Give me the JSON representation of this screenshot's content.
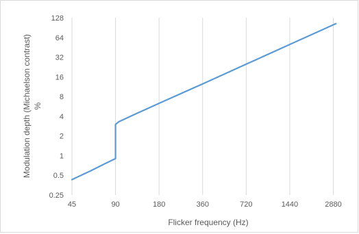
{
  "chart_data": {
    "type": "line",
    "title": "",
    "xlabel": "Flicker frequency (Hz)",
    "ylabel": "Modulation depth (Michaelson contrast)",
    "ylabel_unit": "%",
    "x_scale": "log2",
    "y_scale": "log2",
    "xlim": [
      45,
      3600
    ],
    "ylim": [
      0.25,
      128
    ],
    "x_ticks": [
      "45",
      "90",
      "180",
      "360",
      "720",
      "1440",
      "2880"
    ],
    "x_tick_values": [
      45,
      90,
      180,
      360,
      720,
      1440,
      2880
    ],
    "y_ticks": [
      "0.25",
      "0.5",
      "1",
      "2",
      "4",
      "8",
      "16",
      "32",
      "64",
      "128"
    ],
    "y_tick_values": [
      0.25,
      0.5,
      1,
      2,
      4,
      8,
      16,
      32,
      64,
      128
    ],
    "grid": "vertical",
    "legend": "none",
    "series": [
      {
        "color": "#5b9bd5",
        "x": [
          45,
          60,
          75,
          90,
          90,
          95,
          120,
          180,
          360,
          720,
          1440,
          2880,
          3000
        ],
        "y": [
          0.43,
          0.58,
          0.74,
          0.9,
          3.0,
          3.3,
          4.2,
          6.3,
          12.5,
          25,
          50,
          100,
          104
        ]
      }
    ]
  }
}
